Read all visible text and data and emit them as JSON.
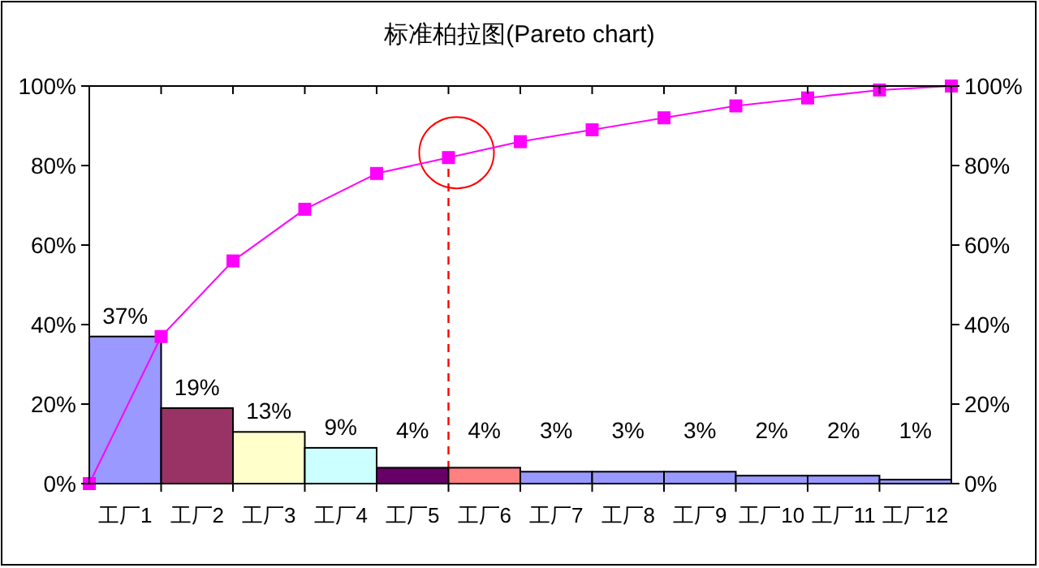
{
  "chart_data": {
    "type": "bar",
    "title": "标准柏拉图(Pareto chart)",
    "categories": [
      null,
      "工厂1",
      null,
      "工厂2",
      null,
      "工厂3",
      null,
      "工厂4",
      null,
      "工厂5",
      null,
      "工厂6",
      null,
      "工厂7",
      null,
      "工厂8",
      null,
      "工厂9",
      null,
      "工厂10",
      null,
      "工厂11",
      null,
      "工厂12",
      null
    ],
    "series": [
      {
        "values": [
          null,
          37,
          null,
          19,
          null,
          13,
          null,
          9,
          null,
          4,
          null,
          4,
          null,
          3,
          null,
          3,
          null,
          3,
          null,
          2,
          null,
          2,
          null,
          1,
          null
        ],
        "colors": [
          null,
          "#9999ff",
          null,
          "#993366",
          null,
          "#ffffcc",
          null,
          "#ccffff",
          null,
          "#660066",
          null,
          "#ff8080",
          null,
          "#9999ff",
          null,
          "#9999ff",
          null,
          "#9999ff",
          null,
          "#9999ff",
          null,
          "#9999ff",
          null,
          "#9999ff",
          null
        ],
        "value_labels": [
          null,
          "37%",
          null,
          "19%",
          null,
          "13%",
          null,
          "9%",
          null,
          "4%",
          null,
          "4%",
          null,
          "3%",
          null,
          "3%",
          null,
          "3%",
          null,
          "2%",
          null,
          "2%",
          null,
          "1%",
          null
        ]
      },
      {
        "type": "line",
        "axis": "y2",
        "color": "#ff00ff",
        "marker": "square",
        "values": [
          0,
          null,
          37,
          null,
          56,
          null,
          69,
          null,
          78,
          null,
          82,
          null,
          86,
          null,
          89,
          null,
          92,
          null,
          95,
          null,
          97,
          null,
          99,
          null,
          100
        ]
      }
    ],
    "ylim": [
      0,
      100
    ],
    "yticks": [
      {
        "value": 0,
        "label": "0%"
      },
      {
        "value": 20,
        "label": "20%"
      },
      {
        "value": 40,
        "label": "40%"
      },
      {
        "value": 60,
        "label": "60%"
      },
      {
        "value": 80,
        "label": "80%"
      },
      {
        "value": 100,
        "label": "100%"
      }
    ],
    "y2lim": [
      0,
      100
    ],
    "y2ticks": [
      {
        "value": 0,
        "label": "0%"
      },
      {
        "value": 20,
        "label": "20%"
      },
      {
        "value": 40,
        "label": "40%"
      },
      {
        "value": 60,
        "label": "60%"
      },
      {
        "value": 80,
        "label": "80%"
      },
      {
        "value": 100,
        "label": "100%"
      }
    ],
    "grid": false
  }
}
